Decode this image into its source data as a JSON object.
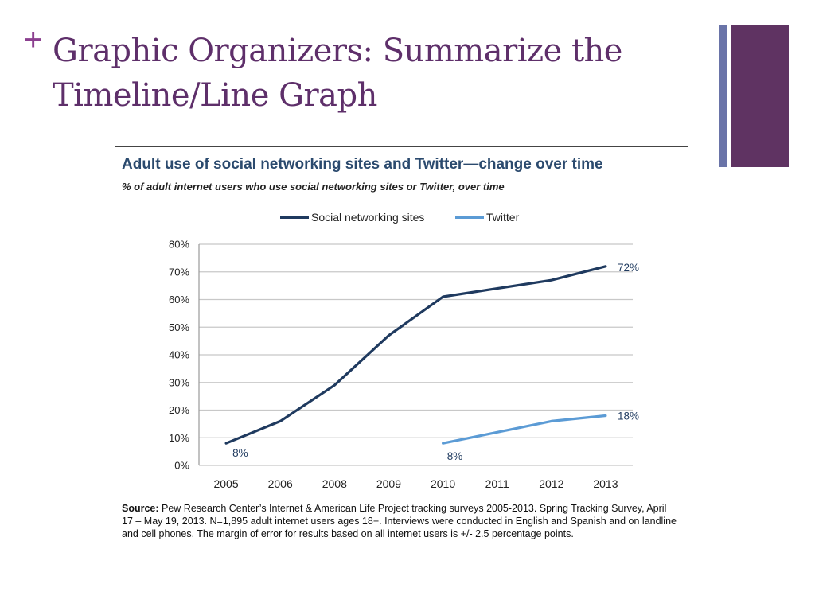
{
  "slide": {
    "plus_glyph": "+",
    "title_line1": "Graphic Organizers: Summarize the",
    "title_line2": "Timeline/Line Graph",
    "accent_colors": {
      "plus": "#8b3f8f",
      "title": "#5e2f6a",
      "bar_thin": "#6a74a8",
      "bar_thick": "#5f3362"
    }
  },
  "chart_data": {
    "type": "line",
    "title": "Adult use of social networking sites and Twitter—change over time",
    "subtitle": "% of adult internet users who use social networking sites or Twitter, over time",
    "categories": [
      "2005",
      "2006",
      "2008",
      "2009",
      "2010",
      "2011",
      "2012",
      "2013"
    ],
    "ylim": [
      0,
      80
    ],
    "yticks": [
      0,
      10,
      20,
      30,
      40,
      50,
      60,
      70,
      80
    ],
    "ytick_labels": [
      "0%",
      "10%",
      "20%",
      "30%",
      "40%",
      "50%",
      "60%",
      "70%",
      "80%"
    ],
    "grid": true,
    "legend_position": "top",
    "series": [
      {
        "name": "Social networking sites",
        "color": "#1f3a5f",
        "values": [
          8,
          16,
          29,
          47,
          61,
          64,
          67,
          72
        ],
        "labels": [
          {
            "index": 0,
            "text": "8%"
          },
          {
            "index": 7,
            "text": "72%"
          }
        ]
      },
      {
        "name": "Twitter",
        "color": "#5b9bd5",
        "values": [
          null,
          null,
          null,
          null,
          8,
          12,
          16,
          18
        ],
        "labels": [
          {
            "index": 4,
            "text": "8%"
          },
          {
            "index": 7,
            "text": "18%"
          }
        ]
      }
    ]
  },
  "source": {
    "label": "Source:",
    "text": " Pew Research Center’s Internet & American Life Project tracking surveys 2005-2013. Spring Tracking Survey, April 17 – May 19, 2013. N=1,895 adult internet users ages 18+. Interviews were conducted in English and Spanish and on landline and cell phones.  The margin of error for results based on all internet users is +/- 2.5 percentage points."
  }
}
